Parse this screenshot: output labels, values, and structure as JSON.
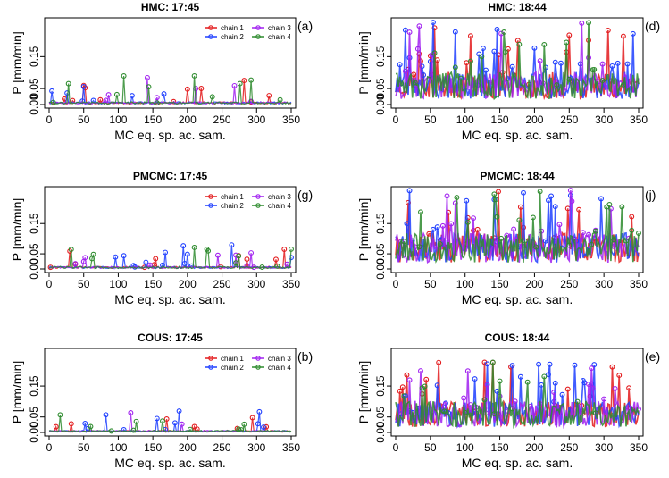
{
  "chart_data": [
    {
      "type": "line",
      "title": "HMC: 17:45",
      "tag": "(a)",
      "xlabel": "MC eq. sp. ac. sam.",
      "ylabel": "P [mm/min]",
      "x_ticks": [
        0,
        50,
        100,
        150,
        200,
        250,
        300,
        350
      ],
      "y_ticks": [
        "0.00",
        "0.05",
        "0.15"
      ],
      "y_tick_values": [
        0,
        0.05,
        0.15
      ],
      "xlim": [
        0,
        350
      ],
      "ylim": [
        0,
        0.26
      ],
      "legend": true,
      "legend_position": "top-right",
      "level": 0.005,
      "spikes": 20,
      "spike_max": 0.09,
      "seed": 11
    },
    {
      "type": "line",
      "title": "HMC: 18:44",
      "tag": "(d)",
      "xlabel": "MC eq. sp. ac. sam.",
      "ylabel": "P [mm/min]",
      "x_ticks": [
        0,
        50,
        100,
        150,
        200,
        250,
        300,
        350
      ],
      "y_ticks": [
        "0.00",
        "0.05",
        "0.15"
      ],
      "y_tick_values": [
        0,
        0.05,
        0.15
      ],
      "xlim": [
        0,
        350
      ],
      "ylim": [
        0,
        0.26
      ],
      "legend": false,
      "level": 0.06,
      "spikes": 50,
      "spike_max": 0.26,
      "seed": 23
    },
    {
      "type": "line",
      "title": "PMCMC: 17:45",
      "tag": "(g)",
      "xlabel": "MC eq. sp. ac. sam.",
      "ylabel": "P [mm/min]",
      "x_ticks": [
        0,
        50,
        100,
        150,
        200,
        250,
        300,
        350
      ],
      "y_ticks": [
        "0.00",
        "0.05",
        "0.15"
      ],
      "y_tick_values": [
        0,
        0.05,
        0.15
      ],
      "xlim": [
        0,
        350
      ],
      "ylim": [
        0,
        0.26
      ],
      "legend": true,
      "legend_position": "top-right",
      "level": 0.005,
      "spikes": 24,
      "spike_max": 0.08,
      "seed": 37
    },
    {
      "type": "line",
      "title": "PMCMC: 18:44",
      "tag": "(j)",
      "xlabel": "MC eq. sp. ac. sam.",
      "ylabel": "P [mm/min]",
      "x_ticks": [
        0,
        50,
        100,
        150,
        200,
        250,
        300,
        350
      ],
      "y_ticks": [
        "0.00",
        "0.05",
        "0.15"
      ],
      "y_tick_values": [
        0,
        0.05,
        0.15
      ],
      "xlim": [
        0,
        350
      ],
      "ylim": [
        0,
        0.26
      ],
      "legend": false,
      "level": 0.07,
      "spikes": 60,
      "spike_max": 0.26,
      "seed": 41
    },
    {
      "type": "line",
      "title": "COUS: 17:45",
      "tag": "(b)",
      "xlabel": "MC eq. sp. ac. sam.",
      "ylabel": "P [mm/min]",
      "x_ticks": [
        0,
        50,
        100,
        150,
        200,
        250,
        300,
        350
      ],
      "y_ticks": [
        "0.00",
        "0.05",
        "0.15"
      ],
      "y_tick_values": [
        0,
        0.05,
        0.15
      ],
      "xlim": [
        0,
        350
      ],
      "ylim": [
        0,
        0.26
      ],
      "legend": true,
      "legend_position": "top-right",
      "level": 0.004,
      "spikes": 22,
      "spike_max": 0.07,
      "seed": 53
    },
    {
      "type": "line",
      "title": "COUS: 18:44",
      "tag": "(e)",
      "xlabel": "MC eq. sp. ac. sam.",
      "ylabel": "P [mm/min]",
      "x_ticks": [
        0,
        50,
        100,
        150,
        200,
        250,
        300,
        350
      ],
      "y_ticks": [
        "0.00",
        "0.05",
        "0.15"
      ],
      "y_tick_values": [
        0,
        0.05,
        0.15
      ],
      "xlim": [
        0,
        350
      ],
      "ylim": [
        0,
        0.26
      ],
      "legend": false,
      "level": 0.06,
      "spikes": 45,
      "spike_max": 0.23,
      "seed": 67
    }
  ],
  "legend": {
    "entries": [
      {
        "name": "chain 1",
        "color": "#e31a1c"
      },
      {
        "name": "chain 2",
        "color": "#1f3fff"
      },
      {
        "name": "chain 3",
        "color": "#a020f0"
      },
      {
        "name": "chain 4",
        "color": "#2e8b2e"
      }
    ]
  }
}
